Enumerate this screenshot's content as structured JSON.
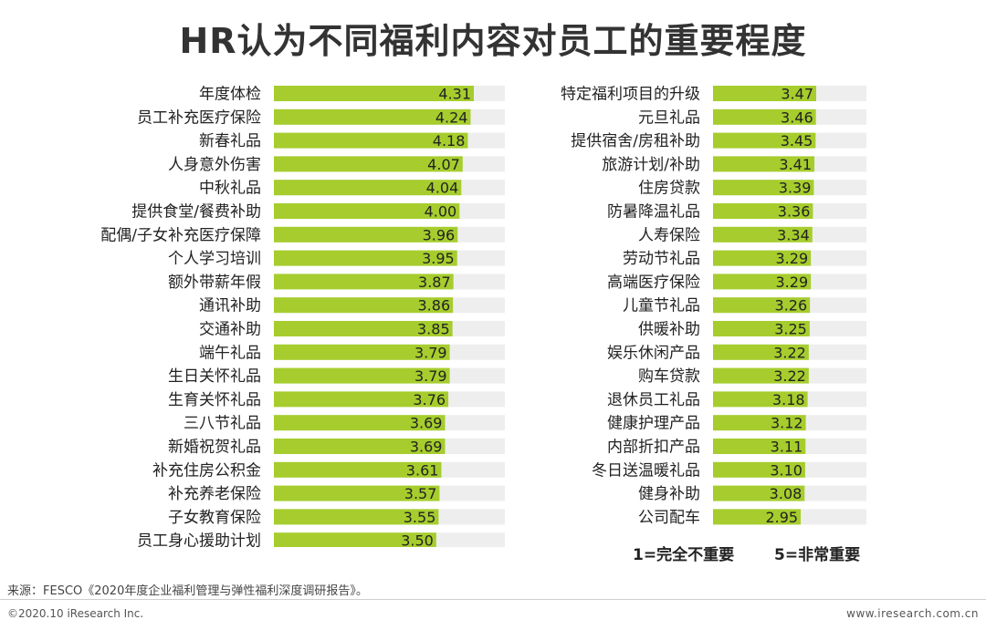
{
  "title": "HR认为不同福利内容对员工的重要程度",
  "legend": {
    "min_label": "1=完全不重要",
    "max_label": "5=非常重要"
  },
  "footer": {
    "source": "来源：FESCO《2020年度企业福利管理与弹性福利深度调研报告》。",
    "copyright": "©2020.10 iResearch Inc.",
    "website": "www.iresearch.com.cn"
  },
  "colors": {
    "bar": "#a6cd2d",
    "track": "#eeeeee",
    "label": "#222222"
  },
  "chart_data": [
    {
      "type": "bar",
      "orientation": "horizontal",
      "xlim": [
        1,
        5
      ],
      "categories": [
        "年度体检",
        "员工补充医疗保险",
        "新春礼品",
        "人身意外伤害",
        "中秋礼品",
        "提供食堂/餐费补助",
        "配偶/子女补充医疗保障",
        "个人学习培训",
        "额外带薪年假",
        "通讯补助",
        "交通补助",
        "端午礼品",
        "生日关怀礼品",
        "生育关怀礼品",
        "三八节礼品",
        "新婚祝贺礼品",
        "补充住房公积金",
        "补充养老保险",
        "子女教育保险",
        "员工身心援助计划"
      ],
      "values": [
        4.31,
        4.24,
        4.18,
        4.07,
        4.04,
        4.0,
        3.96,
        3.95,
        3.87,
        3.86,
        3.85,
        3.79,
        3.79,
        3.76,
        3.69,
        3.69,
        3.61,
        3.57,
        3.55,
        3.5
      ],
      "labels": [
        "4.31",
        "4.24",
        "4.18",
        "4.07",
        "4.04",
        "4.00",
        "3.96",
        "3.95",
        "3.87",
        "3.86",
        "3.85",
        "3.79",
        "3.79",
        "3.76",
        "3.69",
        "3.69",
        "3.61",
        "3.57",
        "3.55",
        "3.50"
      ]
    },
    {
      "type": "bar",
      "orientation": "horizontal",
      "xlim": [
        1,
        5
      ],
      "categories": [
        "特定福利项目的升级",
        "元旦礼品",
        "提供宿舍/房租补助",
        "旅游计划/补助",
        "住房贷款",
        "防暑降温礼品",
        "人寿保险",
        "劳动节礼品",
        "高端医疗保险",
        "儿童节礼品",
        "供暖补助",
        "娱乐休闲产品",
        "购车贷款",
        "退休员工礼品",
        "健康护理产品",
        "内部折扣产品",
        "冬日送温暖礼品",
        "健身补助",
        "公司配车"
      ],
      "values": [
        3.47,
        3.46,
        3.45,
        3.41,
        3.39,
        3.36,
        3.34,
        3.29,
        3.29,
        3.26,
        3.25,
        3.22,
        3.22,
        3.18,
        3.12,
        3.11,
        3.1,
        3.08,
        2.95
      ],
      "labels": [
        "3.47",
        "3.46",
        "3.45",
        "3.41",
        "3.39",
        "3.36",
        "3.34",
        "3.29",
        "3.29",
        "3.26",
        "3.25",
        "3.22",
        "3.22",
        "3.18",
        "3.12",
        "3.11",
        "3.10",
        "3.08",
        "2.95"
      ]
    }
  ]
}
